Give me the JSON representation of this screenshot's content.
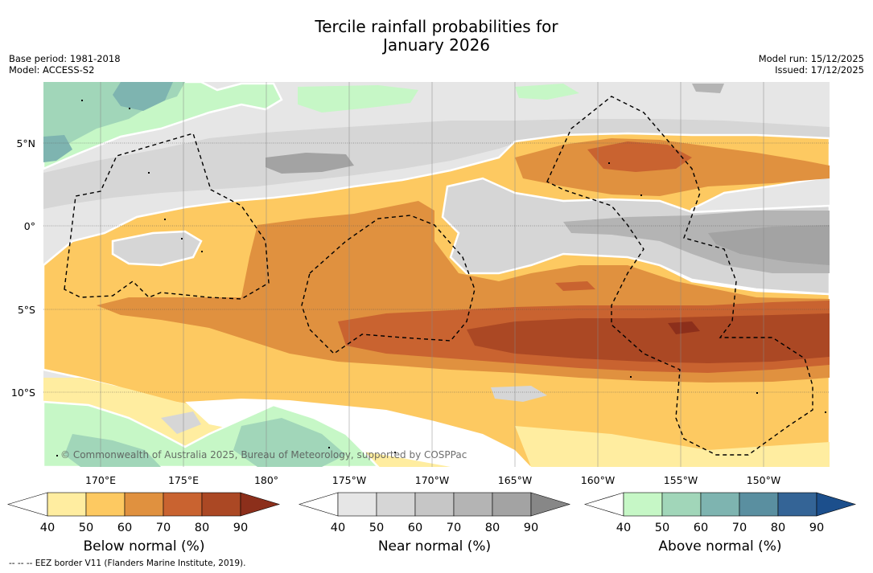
{
  "title": {
    "line1": "Tercile rainfall probabilities for",
    "line2": "January 2026"
  },
  "meta_left": {
    "base_period": "Base period: 1981-2018",
    "model": "Model: ACCESS-S2"
  },
  "meta_right": {
    "model_run": "Model run: 15/12/2025",
    "issued": "Issued: 17/12/2025"
  },
  "map": {
    "lat_labels": [
      "5°N",
      "0°",
      "5°S",
      "10°S"
    ],
    "lon_labels": [
      "170°E",
      "175°E",
      "180°",
      "175°W",
      "170°W",
      "165°W",
      "160°W",
      "155°W",
      "150°W"
    ],
    "copyright": "© Commonwealth of Australia 2025, Bureau of Meteorology, supported by COSPPac"
  },
  "colorbars": [
    {
      "name": "below",
      "title": "Below normal (%)",
      "ticks": [
        "40",
        "50",
        "60",
        "70",
        "80",
        "90"
      ],
      "colors": [
        "#ffffff",
        "#ffeda0",
        "#fdc961",
        "#e0913f",
        "#c96330",
        "#ab4824",
        "#8c2f1b"
      ]
    },
    {
      "name": "near",
      "title": "Near normal (%)",
      "ticks": [
        "40",
        "50",
        "60",
        "70",
        "80",
        "90"
      ],
      "colors": [
        "#ffffff",
        "#e6e6e6",
        "#d6d6d6",
        "#c6c6c6",
        "#b4b4b4",
        "#a3a3a3",
        "#878787"
      ]
    },
    {
      "name": "above",
      "title": "Above normal (%)",
      "ticks": [
        "40",
        "50",
        "60",
        "70",
        "80",
        "90"
      ],
      "colors": [
        "#ffffff",
        "#c6f7c6",
        "#a1d6b9",
        "#7eb4b0",
        "#5a8fa0",
        "#346496",
        "#1c4f8c"
      ]
    }
  ],
  "footnote": "--  --  -- EEZ border V11 (Flanders Marine Institute, 2019)."
}
